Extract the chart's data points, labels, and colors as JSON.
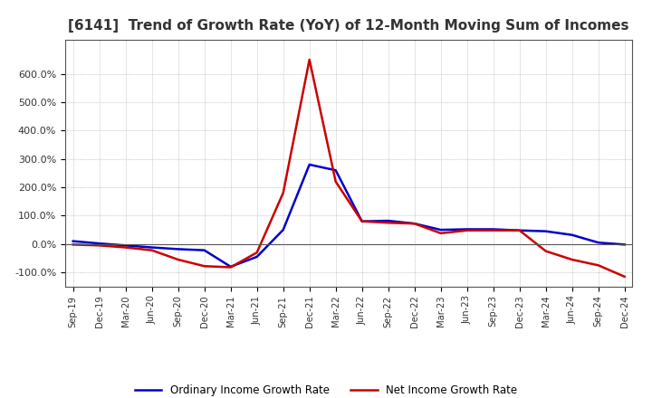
{
  "title": "[6141]  Trend of Growth Rate (YoY) of 12-Month Moving Sum of Incomes",
  "title_fontsize": 11,
  "title_color": "#333333",
  "background_color": "#ffffff",
  "plot_bg_color": "#ffffff",
  "grid_color": "#999999",
  "legend_labels": [
    "Ordinary Income Growth Rate",
    "Net Income Growth Rate"
  ],
  "legend_colors": [
    "#0000cc",
    "#cc0000"
  ],
  "x_labels": [
    "Sep-19",
    "Dec-19",
    "Mar-20",
    "Jun-20",
    "Sep-20",
    "Dec-20",
    "Mar-21",
    "Jun-21",
    "Sep-21",
    "Dec-21",
    "Mar-22",
    "Jun-22",
    "Sep-22",
    "Dec-22",
    "Mar-23",
    "Jun-23",
    "Sep-23",
    "Dec-23",
    "Mar-24",
    "Jun-24",
    "Sep-24",
    "Dec-24"
  ],
  "ordinary_income": [
    0.1,
    0.02,
    -0.05,
    -0.12,
    -0.18,
    -0.22,
    -0.8,
    -0.45,
    0.5,
    2.8,
    2.6,
    0.8,
    0.82,
    0.72,
    0.5,
    0.52,
    0.52,
    0.48,
    0.45,
    0.32,
    0.05,
    -0.02
  ],
  "net_income": [
    -0.02,
    -0.05,
    -0.12,
    -0.22,
    -0.55,
    -0.78,
    -0.82,
    -0.3,
    1.8,
    6.5,
    2.2,
    0.8,
    0.75,
    0.72,
    0.38,
    0.48,
    0.48,
    0.48,
    -0.25,
    -0.55,
    -0.75,
    -1.15
  ],
  "ylim": [
    -1.5,
    7.2
  ],
  "yticks": [
    -1.0,
    0.0,
    1.0,
    2.0,
    3.0,
    4.0,
    5.0,
    6.0
  ],
  "ytick_labels": [
    "-100.0%",
    "0.0%",
    "100.0%",
    "200.0%",
    "300.0%",
    "400.0%",
    "500.0%",
    "600.0%"
  ]
}
